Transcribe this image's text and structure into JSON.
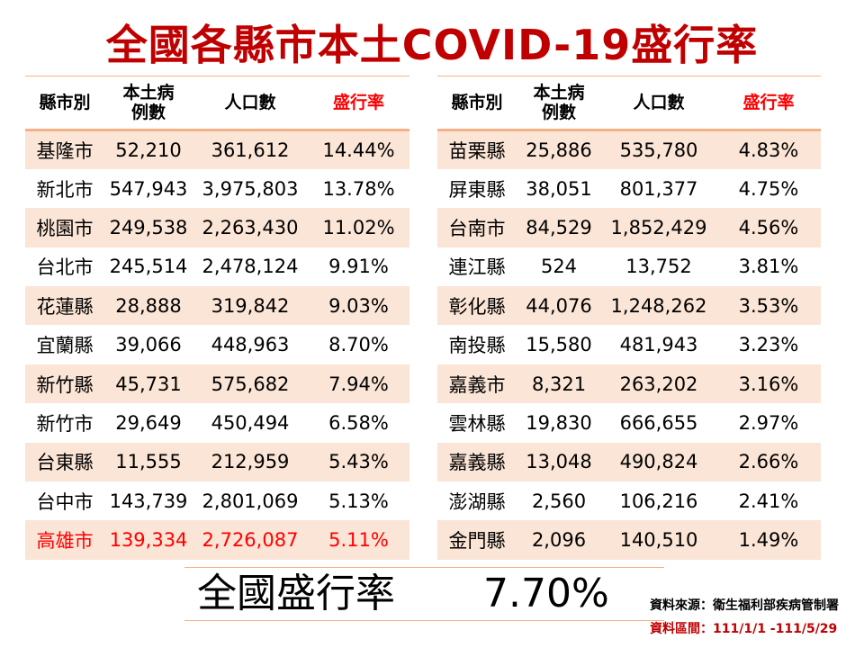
{
  "title": "全國各縣市本土COVID-19盛行率",
  "headers": {
    "region": "縣市別",
    "cases_line1": "本土病",
    "cases_line2": "例數",
    "population": "人口數",
    "prevalence": "盛行率"
  },
  "left_rows": [
    {
      "region": "基隆市",
      "cases": "52,210",
      "population": "361,612",
      "rate": "14.44%"
    },
    {
      "region": "新北市",
      "cases": "547,943",
      "population": "3,975,803",
      "rate": "13.78%"
    },
    {
      "region": "桃園市",
      "cases": "249,538",
      "population": "2,263,430",
      "rate": "11.02%"
    },
    {
      "region": "台北市",
      "cases": "245,514",
      "population": "2,478,124",
      "rate": "9.91%"
    },
    {
      "region": "花蓮縣",
      "cases": "28,888",
      "population": "319,842",
      "rate": "9.03%"
    },
    {
      "region": "宜蘭縣",
      "cases": "39,066",
      "population": "448,963",
      "rate": "8.70%"
    },
    {
      "region": "新竹縣",
      "cases": "45,731",
      "population": "575,682",
      "rate": "7.94%"
    },
    {
      "region": "新竹市",
      "cases": "29,649",
      "population": "450,494",
      "rate": "6.58%"
    },
    {
      "region": "台東縣",
      "cases": "11,555",
      "population": "212,959",
      "rate": "5.43%"
    },
    {
      "region": "台中市",
      "cases": "143,739",
      "population": "2,801,069",
      "rate": "5.13%"
    },
    {
      "region": "高雄市",
      "cases": "139,334",
      "population": "2,726,087",
      "rate": "5.11%",
      "highlight": true
    }
  ],
  "right_rows": [
    {
      "region": "苗栗縣",
      "cases": "25,886",
      "population": "535,780",
      "rate": "4.83%"
    },
    {
      "region": "屏東縣",
      "cases": "38,051",
      "population": "801,377",
      "rate": "4.75%"
    },
    {
      "region": "台南市",
      "cases": "84,529",
      "population": "1,852,429",
      "rate": "4.56%"
    },
    {
      "region": "連江縣",
      "cases": "524",
      "population": "13,752",
      "rate": "3.81%"
    },
    {
      "region": "彰化縣",
      "cases": "44,076",
      "population": "1,248,262",
      "rate": "3.53%"
    },
    {
      "region": "南投縣",
      "cases": "15,580",
      "population": "481,943",
      "rate": "3.23%"
    },
    {
      "region": "嘉義市",
      "cases": "8,321",
      "population": "263,202",
      "rate": "3.16%"
    },
    {
      "region": "雲林縣",
      "cases": "19,830",
      "population": "666,655",
      "rate": "2.97%"
    },
    {
      "region": "嘉義縣",
      "cases": "13,048",
      "population": "490,824",
      "rate": "2.66%"
    },
    {
      "region": "澎湖縣",
      "cases": "2,560",
      "population": "106,216",
      "rate": "2.41%"
    },
    {
      "region": "金門縣",
      "cases": "2,096",
      "population": "140,510",
      "rate": "1.49%"
    }
  ],
  "national": {
    "label": "全國盛行率",
    "value": "7.70%"
  },
  "source": "資料來源：衛生福利部疾病管制署",
  "period": "資料區間：111/1/1 -111/5/29",
  "colors": {
    "title": "#c00000",
    "highlight": "#ff0000",
    "row_band": "#fbe5d6",
    "border": "#f4b183"
  }
}
